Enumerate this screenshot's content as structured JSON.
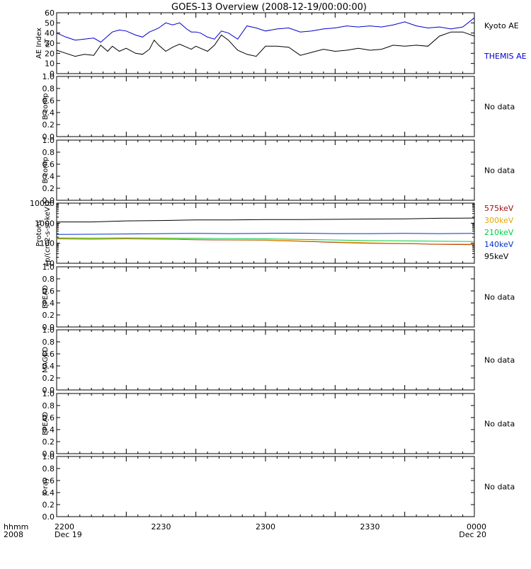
{
  "title": "GOES-13 Overview (2008-12-19/00:00:00)",
  "time_axis": {
    "row1_label": "hhmm",
    "row2_label": "2008",
    "ticks": [
      {
        "hhmm": "2200",
        "date": "Dec 19"
      },
      {
        "hhmm": "2230",
        "date": ""
      },
      {
        "hhmm": "2300",
        "date": ""
      },
      {
        "hhmm": "2330",
        "date": ""
      },
      {
        "hhmm": "0000",
        "date": "Dec 20"
      }
    ]
  },
  "colors": {
    "kyoto": "#000000",
    "themis": "#0000cc",
    "p575": "#a01010",
    "p300": "#e6a800",
    "p210": "#00cc44",
    "p140": "#0033cc",
    "p95": "#000000"
  },
  "chart_data": [
    {
      "type": "line",
      "ylabel_lines": [
        "AE Index",
        "nT"
      ],
      "ylim": [
        0,
        60
      ],
      "yticks": [
        "0",
        "10",
        "20",
        "30",
        "40",
        "50",
        "60"
      ],
      "x_unit": "minutes",
      "x": [
        0,
        4,
        8,
        12,
        16,
        19,
        22,
        24,
        27,
        30,
        34,
        37,
        40,
        42,
        44,
        47,
        50,
        53,
        56,
        58,
        60,
        62,
        65,
        68,
        71,
        74,
        78,
        82,
        86,
        90,
        95,
        100,
        105,
        110,
        115,
        120,
        125,
        130,
        135,
        140,
        145,
        150,
        155,
        160,
        165,
        170,
        175,
        180
      ],
      "series": [
        {
          "name": "Kyoto AE",
          "color_key": "kyoto",
          "values": [
            23,
            20,
            17,
            19,
            18,
            28,
            22,
            27,
            22,
            25,
            20,
            19,
            24,
            33,
            28,
            22,
            26,
            29,
            26,
            24,
            27,
            25,
            22,
            28,
            38,
            33,
            23,
            19,
            17,
            27,
            27,
            26,
            18,
            21,
            24,
            22,
            23,
            25,
            23,
            24,
            28,
            27,
            28,
            27,
            37,
            41,
            41,
            37
          ]
        },
        {
          "name": "THEMIS AE",
          "color_key": "themis",
          "values": [
            40,
            36,
            33,
            34,
            35,
            31,
            37,
            41,
            43,
            42,
            38,
            36,
            41,
            43,
            45,
            50,
            48,
            50,
            44,
            41,
            41,
            40,
            36,
            34,
            42,
            40,
            34,
            47,
            45,
            42,
            44,
            45,
            41,
            42,
            44,
            45,
            47,
            46,
            47,
            46,
            48,
            51,
            47,
            45,
            46,
            44,
            46,
            55
          ]
        }
      ]
    },
    {
      "type": "line",
      "ylabel_lines": [
        "B comp"
      ],
      "ylim": [
        0,
        1
      ],
      "yticks": [
        "0.0",
        "0.2",
        "0.4",
        "0.6",
        "0.8",
        "1.0"
      ],
      "status": "No data",
      "series": []
    },
    {
      "type": "line",
      "ylabel_lines": [
        "B comp"
      ],
      "ylim": [
        0,
        1
      ],
      "yticks": [
        "0.0",
        "0.2",
        "0.4",
        "0.6",
        "0.8",
        "1.0"
      ],
      "status": "No data",
      "series": []
    },
    {
      "type": "line",
      "ylabel_lines": [
        "Protons",
        "[p/(cm2-s-sr-keV)]"
      ],
      "yscale": "log",
      "ylim": [
        10,
        10000
      ],
      "yticks": [
        "10",
        "100",
        "1000",
        "10000"
      ],
      "x_unit": "minutes",
      "x": [
        0,
        15,
        30,
        45,
        60,
        75,
        90,
        105,
        120,
        135,
        150,
        165,
        180
      ],
      "series": [
        {
          "name": "575keV",
          "color_key": "p575",
          "values": [
            165,
            160,
            165,
            160,
            150,
            145,
            140,
            125,
            110,
            100,
            95,
            88,
            85
          ]
        },
        {
          "name": "300keV",
          "color_key": "p300",
          "values": [
            170,
            165,
            170,
            165,
            155,
            150,
            145,
            130,
            115,
            105,
            100,
            92,
            90
          ]
        },
        {
          "name": "210keV",
          "color_key": "p210",
          "values": [
            185,
            180,
            185,
            180,
            175,
            170,
            165,
            155,
            145,
            135,
            130,
            125,
            122
          ]
        },
        {
          "name": "140keV",
          "color_key": "p140",
          "values": [
            275,
            280,
            290,
            300,
            310,
            300,
            310,
            315,
            300,
            300,
            310,
            300,
            310
          ]
        },
        {
          "name": "95keV",
          "color_key": "p95",
          "values": [
            1150,
            1150,
            1300,
            1350,
            1450,
            1450,
            1500,
            1500,
            1550,
            1600,
            1650,
            1750,
            1800
          ]
        }
      ]
    },
    {
      "type": "line",
      "ylabel_lines": [
        "EPEAD"
      ],
      "ylim": [
        0,
        1
      ],
      "yticks": [
        "0.0",
        "0.2",
        "0.4",
        "0.6",
        "0.8",
        "1.0"
      ],
      "status": "No data",
      "series": []
    },
    {
      "type": "line",
      "ylabel_lines": [
        "MAGED"
      ],
      "ylim": [
        0,
        1
      ],
      "yticks": [
        "0.0",
        "0.2",
        "0.4",
        "0.6",
        "0.8",
        "1.0"
      ],
      "status": "No data",
      "series": []
    },
    {
      "type": "line",
      "ylabel_lines": [
        "EPEAD"
      ],
      "ylim": [
        0,
        1
      ],
      "yticks": [
        "0.0",
        "0.2",
        "0.4",
        "0.6",
        "0.8",
        "1.0"
      ],
      "status": "No data",
      "series": []
    },
    {
      "type": "line",
      "ylabel_lines": [
        "X-ray"
      ],
      "ylim": [
        0,
        1
      ],
      "yticks": [
        "0.0",
        "0.2",
        "0.4",
        "0.6",
        "0.8",
        "1.0"
      ],
      "status": "No data",
      "series": []
    }
  ]
}
